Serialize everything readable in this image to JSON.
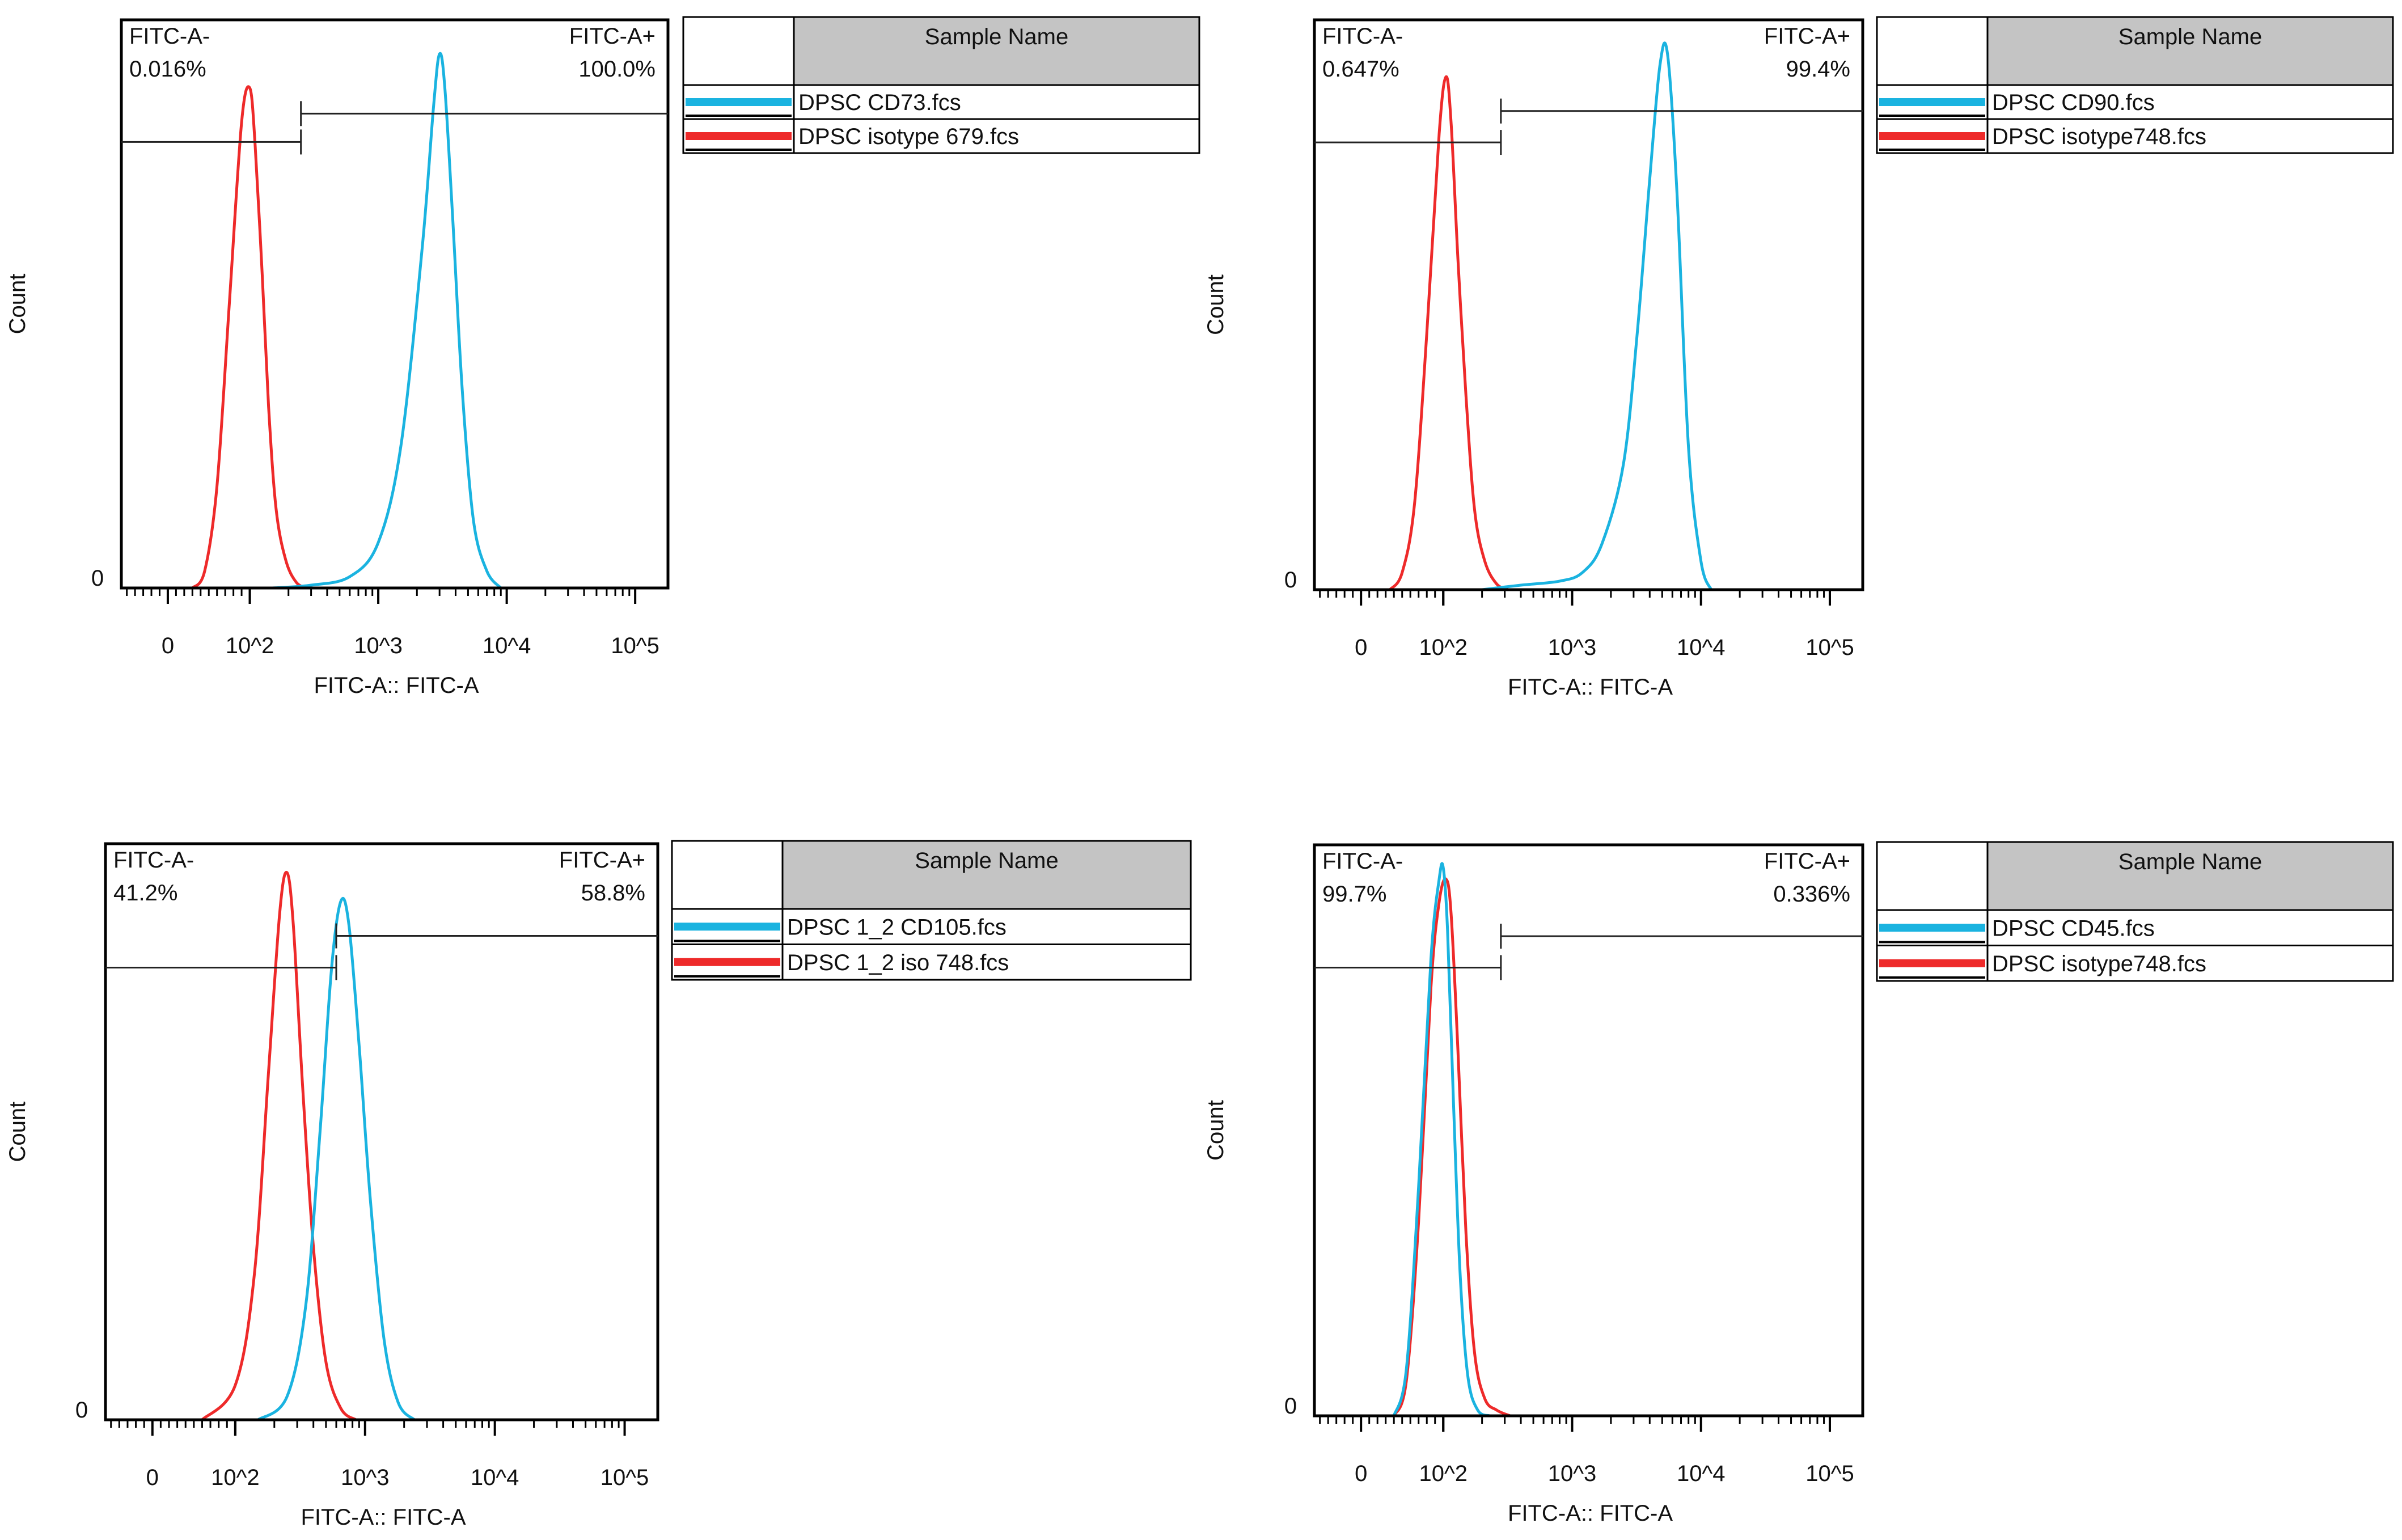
{
  "panels": [
    {
      "axis_label": "FITC-A:: FITC-A",
      "y_label": "Count",
      "y_zero": "0",
      "ticks": [
        "0",
        "10^2",
        "10^3",
        "10^4",
        "10^5"
      ],
      "gate_neg": {
        "name": "FITC-A-",
        "pct": "0.016%"
      },
      "gate_pos": {
        "name": "FITC-A+",
        "pct": "100.0%"
      },
      "legend_header": "Sample Name",
      "legend": [
        {
          "label": "DPSC CD73.fcs",
          "color": "#1ab3e0"
        },
        {
          "label": "DPSC isotype 679.fcs",
          "color": "#ee2a2a"
        }
      ]
    },
    {
      "axis_label": "FITC-A:: FITC-A",
      "y_label": "Count",
      "y_zero": "0",
      "ticks": [
        "0",
        "10^2",
        "10^3",
        "10^4",
        "10^5"
      ],
      "gate_neg": {
        "name": "FITC-A-",
        "pct": "0.647%"
      },
      "gate_pos": {
        "name": "FITC-A+",
        "pct": "99.4%"
      },
      "legend_header": "Sample Name",
      "legend": [
        {
          "label": "DPSC CD90.fcs",
          "color": "#1ab3e0"
        },
        {
          "label": "DPSC isotype748.fcs",
          "color": "#ee2a2a"
        }
      ]
    },
    {
      "axis_label": "FITC-A:: FITC-A",
      "y_label": "Count",
      "y_zero": "0",
      "ticks": [
        "0",
        "10^2",
        "10^3",
        "10^4",
        "10^5"
      ],
      "gate_neg": {
        "name": "FITC-A-",
        "pct": "41.2%"
      },
      "gate_pos": {
        "name": "FITC-A+",
        "pct": "58.8%"
      },
      "legend_header": "Sample Name",
      "legend": [
        {
          "label": "DPSC 1_2 CD105.fcs",
          "color": "#1ab3e0"
        },
        {
          "label": "DPSC 1_2 iso 748.fcs",
          "color": "#ee2a2a"
        }
      ]
    },
    {
      "axis_label": "FITC-A:: FITC-A",
      "y_label": "Count",
      "y_zero": "0",
      "ticks": [
        "0",
        "10^2",
        "10^3",
        "10^4",
        "10^5"
      ],
      "gate_neg": {
        "name": "FITC-A-",
        "pct": "99.7%"
      },
      "gate_pos": {
        "name": "FITC-A+",
        "pct": "0.336%"
      },
      "legend_header": "Sample Name",
      "legend": [
        {
          "label": "DPSC CD45.fcs",
          "color": "#1ab3e0"
        },
        {
          "label": "DPSC isotype748.fcs",
          "color": "#ee2a2a"
        }
      ]
    }
  ],
  "chart_data": [
    {
      "type": "line",
      "title": "",
      "xlabel": "FITC-A:: FITC-A",
      "ylabel": "Count",
      "x_scale": "biexponential",
      "x_ticks": [
        "0",
        "10^2",
        "10^3",
        "10^4",
        "10^5"
      ],
      "ylim": [
        0,
        100
      ],
      "gate_split": 250,
      "series": [
        {
          "name": "DPSC CD73.fcs",
          "color": "#1ab3e0",
          "x": [
            150,
            300,
            600,
            1000,
            1500,
            2200,
            2700,
            3000,
            3300,
            3800,
            4500,
            5500,
            7000,
            9000
          ],
          "y": [
            0,
            0.5,
            2,
            8,
            25,
            60,
            85,
            94,
            88,
            65,
            35,
            12,
            3,
            0
          ]
        },
        {
          "name": "DPSC isotype 679.fcs",
          "color": "#ee2a2a",
          "x": [
            30,
            45,
            60,
            75,
            90,
            100,
            110,
            125,
            140,
            160,
            190,
            230,
            280
          ],
          "y": [
            0,
            3,
            18,
            50,
            82,
            88,
            78,
            55,
            32,
            14,
            5,
            1,
            0
          ]
        }
      ]
    },
    {
      "type": "line",
      "title": "",
      "xlabel": "FITC-A:: FITC-A",
      "ylabel": "Count",
      "x_scale": "biexponential",
      "x_ticks": [
        "0",
        "10^2",
        "10^3",
        "10^4",
        "10^5"
      ],
      "ylim": [
        0,
        100
      ],
      "gate_split": 280,
      "series": [
        {
          "name": "DPSC CD90.fcs",
          "color": "#1ab3e0",
          "x": [
            200,
            400,
            800,
            1200,
            1700,
            2500,
            3200,
            4000,
            4800,
            5500,
            6500,
            8000,
            10000,
            12000
          ],
          "y": [
            0,
            0.8,
            1.5,
            3,
            8,
            22,
            45,
            72,
            92,
            94,
            70,
            25,
            5,
            0
          ]
        },
        {
          "name": "DPSC isotype748.fcs",
          "color": "#ee2a2a",
          "x": [
            35,
            50,
            65,
            80,
            95,
            105,
            115,
            130,
            150,
            175,
            210,
            260,
            320
          ],
          "y": [
            0,
            3,
            15,
            45,
            80,
            90,
            82,
            58,
            34,
            14,
            5,
            1,
            0
          ]
        }
      ]
    },
    {
      "type": "line",
      "title": "",
      "xlabel": "FITC-A:: FITC-A",
      "ylabel": "Count",
      "x_scale": "biexponential",
      "x_ticks": [
        "0",
        "10^2",
        "10^3",
        "10^4",
        "10^5"
      ],
      "ylim": [
        0,
        100
      ],
      "gate_split": 600,
      "series": [
        {
          "name": "DPSC 1_2 CD105.fcs",
          "color": "#1ab3e0",
          "x": [
            150,
            250,
            350,
            450,
            550,
            650,
            750,
            900,
            1100,
            1400,
            1800,
            2400
          ],
          "y": [
            0,
            4,
            20,
            50,
            78,
            90,
            86,
            65,
            38,
            14,
            3,
            0
          ]
        },
        {
          "name": "DPSC 1_2 iso 748.fcs",
          "color": "#ee2a2a",
          "x": [
            60,
            100,
            140,
            180,
            220,
            250,
            280,
            330,
            400,
            500,
            650,
            850
          ],
          "y": [
            0,
            6,
            25,
            60,
            88,
            95,
            86,
            58,
            30,
            10,
            2,
            0
          ]
        }
      ]
    },
    {
      "type": "line",
      "title": "",
      "xlabel": "FITC-A:: FITC-A",
      "ylabel": "Count",
      "x_scale": "biexponential",
      "x_ticks": [
        "0",
        "10^2",
        "10^3",
        "10^4",
        "10^5"
      ],
      "ylim": [
        0,
        100
      ],
      "gate_split": 280,
      "series": [
        {
          "name": "DPSC CD45.fcs",
          "color": "#1ab3e0",
          "x": [
            40,
            55,
            70,
            85,
            95,
            100,
            108,
            120,
            135,
            155,
            185,
            230
          ],
          "y": [
            0,
            8,
            40,
            80,
            94,
            96,
            85,
            55,
            25,
            7,
            1,
            0
          ]
        },
        {
          "name": "DPSC isotype748.fcs",
          "color": "#ee2a2a",
          "x": [
            40,
            55,
            70,
            85,
            95,
            105,
            115,
            130,
            150,
            175,
            210,
            260,
            330
          ],
          "y": [
            0,
            6,
            34,
            75,
            90,
            94,
            88,
            64,
            32,
            11,
            3,
            1,
            0
          ]
        }
      ]
    }
  ]
}
